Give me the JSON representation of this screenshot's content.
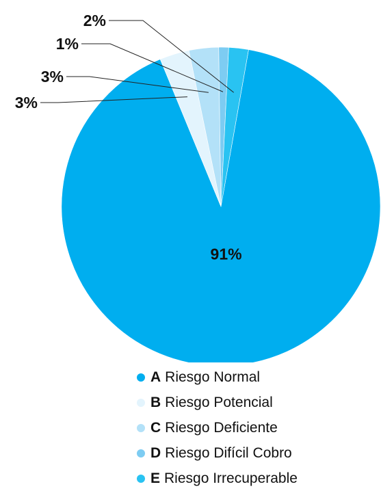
{
  "chart_data": {
    "type": "pie",
    "slices": [
      {
        "code": "A",
        "name": "Riesgo Normal",
        "value": 91,
        "label": "91%",
        "color": "#00AEEF"
      },
      {
        "code": "B",
        "name": "Riesgo Potencial",
        "value": 3,
        "label": "3%",
        "color": "#E3F4FD"
      },
      {
        "code": "C",
        "name": "Riesgo Deficiente",
        "value": 3,
        "label": "3%",
        "color": "#B3E1F8"
      },
      {
        "code": "D",
        "name": "Riesgo Difícil Cobro",
        "value": 1,
        "label": "1%",
        "color": "#7DCCF2"
      },
      {
        "code": "E",
        "name": "Riesgo Irrecuperable",
        "value": 2,
        "label": "2%",
        "color": "#29C3F2"
      }
    ],
    "legend_position": "bottom"
  }
}
